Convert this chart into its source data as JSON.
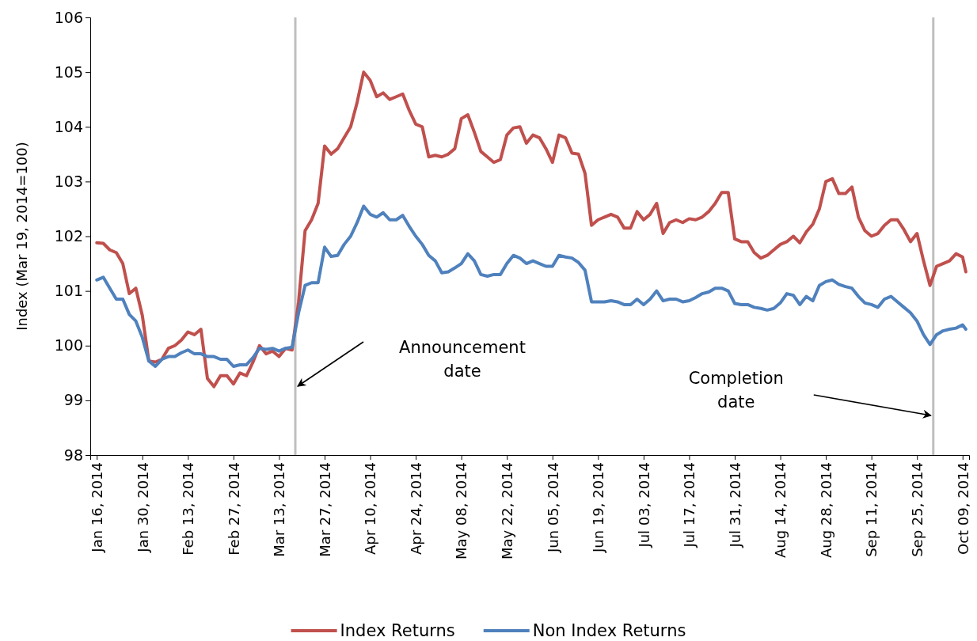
{
  "chart_data": {
    "type": "line",
    "ylabel": "Index (Mar 19, 2014=100)",
    "x": [
      "2014-01-16",
      "2014-01-18",
      "2014-01-20",
      "2014-01-22",
      "2014-01-24",
      "2014-01-26",
      "2014-01-28",
      "2014-01-30",
      "2014-02-01",
      "2014-02-03",
      "2014-02-05",
      "2014-02-07",
      "2014-02-09",
      "2014-02-11",
      "2014-02-13",
      "2014-02-15",
      "2014-02-17",
      "2014-02-19",
      "2014-02-21",
      "2014-02-23",
      "2014-02-25",
      "2014-02-27",
      "2014-03-01",
      "2014-03-03",
      "2014-03-05",
      "2014-03-07",
      "2014-03-09",
      "2014-03-11",
      "2014-03-13",
      "2014-03-15",
      "2014-03-17",
      "2014-03-19",
      "2014-03-21",
      "2014-03-23",
      "2014-03-25",
      "2014-03-27",
      "2014-03-29",
      "2014-03-31",
      "2014-04-02",
      "2014-04-04",
      "2014-04-06",
      "2014-04-08",
      "2014-04-10",
      "2014-04-12",
      "2014-04-14",
      "2014-04-16",
      "2014-04-18",
      "2014-04-20",
      "2014-04-22",
      "2014-04-24",
      "2014-04-26",
      "2014-04-28",
      "2014-04-30",
      "2014-05-02",
      "2014-05-04",
      "2014-05-06",
      "2014-05-08",
      "2014-05-10",
      "2014-05-12",
      "2014-05-14",
      "2014-05-16",
      "2014-05-18",
      "2014-05-20",
      "2014-05-22",
      "2014-05-24",
      "2014-05-26",
      "2014-05-28",
      "2014-05-30",
      "2014-06-01",
      "2014-06-03",
      "2014-06-05",
      "2014-06-07",
      "2014-06-09",
      "2014-06-11",
      "2014-06-13",
      "2014-06-15",
      "2014-06-17",
      "2014-06-19",
      "2014-06-21",
      "2014-06-23",
      "2014-06-25",
      "2014-06-27",
      "2014-06-29",
      "2014-07-01",
      "2014-07-03",
      "2014-07-05",
      "2014-07-07",
      "2014-07-09",
      "2014-07-11",
      "2014-07-13",
      "2014-07-15",
      "2014-07-17",
      "2014-07-19",
      "2014-07-21",
      "2014-07-23",
      "2014-07-25",
      "2014-07-27",
      "2014-07-29",
      "2014-07-31",
      "2014-08-02",
      "2014-08-04",
      "2014-08-06",
      "2014-08-08",
      "2014-08-10",
      "2014-08-12",
      "2014-08-14",
      "2014-08-16",
      "2014-08-18",
      "2014-08-20",
      "2014-08-22",
      "2014-08-24",
      "2014-08-26",
      "2014-08-28",
      "2014-08-30",
      "2014-09-01",
      "2014-09-03",
      "2014-09-05",
      "2014-09-07",
      "2014-09-09",
      "2014-09-11",
      "2014-09-13",
      "2014-09-15",
      "2014-09-17",
      "2014-09-19",
      "2014-09-21",
      "2014-09-23",
      "2014-09-25",
      "2014-09-27",
      "2014-09-29",
      "2014-10-01",
      "2014-10-03",
      "2014-10-05",
      "2014-10-07",
      "2014-10-09",
      "2014-10-10"
    ],
    "series": [
      {
        "name": "Index Returns",
        "color": "#c0504d",
        "values": [
          101.88,
          101.87,
          101.75,
          101.7,
          101.5,
          100.95,
          101.05,
          100.55,
          99.72,
          99.7,
          99.75,
          99.95,
          100.0,
          100.1,
          100.25,
          100.2,
          100.3,
          99.4,
          99.25,
          99.45,
          99.45,
          99.3,
          99.5,
          99.45,
          99.7,
          100.0,
          99.85,
          99.9,
          99.8,
          99.95,
          99.92,
          100.8,
          102.1,
          102.3,
          102.6,
          103.65,
          103.5,
          103.6,
          103.8,
          104.0,
          104.45,
          105.0,
          104.85,
          104.55,
          104.62,
          104.5,
          104.55,
          104.6,
          104.3,
          104.05,
          104.0,
          103.45,
          103.48,
          103.45,
          103.5,
          103.6,
          104.15,
          104.22,
          103.9,
          103.55,
          103.45,
          103.35,
          103.4,
          103.85,
          103.98,
          104.0,
          103.7,
          103.85,
          103.8,
          103.6,
          103.35,
          103.85,
          103.8,
          103.52,
          103.5,
          103.15,
          102.2,
          102.3,
          102.35,
          102.4,
          102.35,
          102.15,
          102.15,
          102.45,
          102.3,
          102.4,
          102.6,
          102.05,
          102.25,
          102.3,
          102.25,
          102.32,
          102.3,
          102.35,
          102.45,
          102.6,
          102.8,
          102.8,
          101.95,
          101.9,
          101.9,
          101.7,
          101.6,
          101.65,
          101.75,
          101.85,
          101.9,
          102.0,
          101.88,
          102.08,
          102.22,
          102.5,
          103.0,
          103.05,
          102.78,
          102.78,
          102.9,
          102.35,
          102.1,
          102.0,
          102.05,
          102.2,
          102.3,
          102.3,
          102.12,
          101.9,
          102.05,
          101.55,
          101.1,
          101.45,
          101.5,
          101.55,
          101.68,
          101.62,
          101.35
        ]
      },
      {
        "name": "Non Index Returns",
        "color": "#4f81bd",
        "values": [
          101.2,
          101.25,
          101.05,
          100.85,
          100.85,
          100.57,
          100.45,
          100.15,
          99.72,
          99.62,
          99.75,
          99.8,
          99.8,
          99.87,
          99.92,
          99.85,
          99.85,
          99.8,
          99.8,
          99.75,
          99.75,
          99.62,
          99.65,
          99.65,
          99.78,
          99.95,
          99.93,
          99.95,
          99.9,
          99.95,
          99.97,
          100.6,
          101.1,
          101.15,
          101.15,
          101.8,
          101.63,
          101.65,
          101.85,
          102.0,
          102.25,
          102.55,
          102.4,
          102.35,
          102.43,
          102.3,
          102.3,
          102.38,
          102.18,
          102.0,
          101.85,
          101.65,
          101.55,
          101.33,
          101.35,
          101.42,
          101.5,
          101.68,
          101.55,
          101.3,
          101.27,
          101.3,
          101.3,
          101.5,
          101.65,
          101.6,
          101.5,
          101.55,
          101.5,
          101.45,
          101.45,
          101.65,
          101.62,
          101.6,
          101.52,
          101.38,
          100.8,
          100.8,
          100.8,
          100.82,
          100.8,
          100.75,
          100.75,
          100.85,
          100.75,
          100.85,
          101.0,
          100.82,
          100.85,
          100.85,
          100.8,
          100.82,
          100.88,
          100.95,
          100.98,
          101.05,
          101.05,
          101.0,
          100.77,
          100.75,
          100.75,
          100.7,
          100.68,
          100.65,
          100.68,
          100.78,
          100.95,
          100.92,
          100.75,
          100.9,
          100.82,
          101.1,
          101.17,
          101.2,
          101.12,
          101.08,
          101.05,
          100.9,
          100.78,
          100.75,
          100.7,
          100.85,
          100.9,
          100.8,
          100.7,
          100.6,
          100.45,
          100.2,
          100.02,
          100.2,
          100.27,
          100.3,
          100.32,
          100.38,
          100.3
        ]
      }
    ],
    "xlim": [
      "2014-01-14",
      "2014-10-11"
    ],
    "xticks": [
      {
        "value": "2014-01-16",
        "label": "Jan 16, 2014"
      },
      {
        "value": "2014-01-30",
        "label": "Jan 30, 2014"
      },
      {
        "value": "2014-02-13",
        "label": "Feb 13, 2014"
      },
      {
        "value": "2014-02-27",
        "label": "Feb 27, 2014"
      },
      {
        "value": "2014-03-13",
        "label": "Mar 13, 2014"
      },
      {
        "value": "2014-03-27",
        "label": "Mar 27, 2014"
      },
      {
        "value": "2014-04-10",
        "label": "Apr 10, 2014"
      },
      {
        "value": "2014-04-24",
        "label": "Apr 24, 2014"
      },
      {
        "value": "2014-05-08",
        "label": "May 08, 2014"
      },
      {
        "value": "2014-05-22",
        "label": "May 22, 2014"
      },
      {
        "value": "2014-06-05",
        "label": "Jun 05, 2014"
      },
      {
        "value": "2014-06-19",
        "label": "Jun 19, 2014"
      },
      {
        "value": "2014-07-03",
        "label": "Jul 03, 2014"
      },
      {
        "value": "2014-07-17",
        "label": "Jul 17, 2014"
      },
      {
        "value": "2014-07-31",
        "label": "Jul 31, 2014"
      },
      {
        "value": "2014-08-14",
        "label": "Aug 14, 2014"
      },
      {
        "value": "2014-08-28",
        "label": "Aug 28, 2014"
      },
      {
        "value": "2014-09-11",
        "label": "Sep 11, 2014"
      },
      {
        "value": "2014-09-25",
        "label": "Sep 25, 2014"
      },
      {
        "value": "2014-10-09",
        "label": "Oct 09, 2014"
      }
    ],
    "ylim": [
      98,
      106
    ],
    "yticks": [
      98,
      99,
      100,
      101,
      102,
      103,
      104,
      105,
      106
    ],
    "ref_lines": [
      {
        "axis": "x",
        "value": "2014-03-18",
        "color": "#bfbfbf"
      },
      {
        "axis": "x",
        "value": "2014-09-30",
        "color": "#bfbfbf"
      }
    ],
    "annotations": [
      "Announcement date",
      "Completion date"
    ],
    "grid": false,
    "legend": "bottom",
    "line_style": "solid",
    "marker": "none"
  }
}
